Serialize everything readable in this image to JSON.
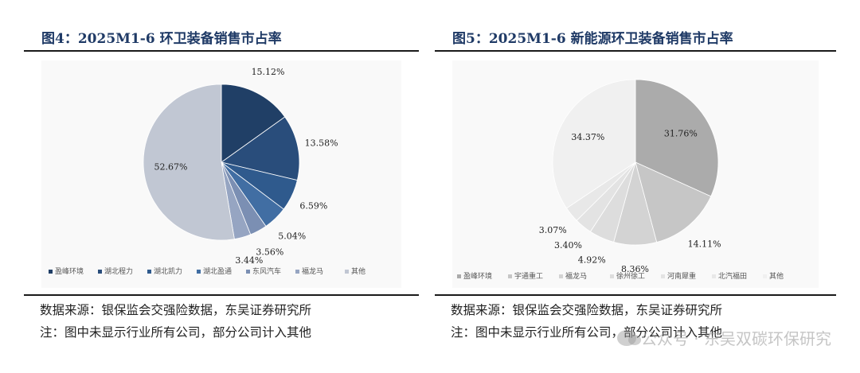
{
  "watermark": "公众号 · 东吴双碳环保研究",
  "chart_data": [
    {
      "type": "pie",
      "title": "图4：2025M1-6 环卫装备销售市占率",
      "labels": [
        "盈峰环境",
        "湖北程力",
        "湖北凯力",
        "湖北盈通",
        "东风汽车",
        "福龙马",
        "其他"
      ],
      "values": [
        15.12,
        13.58,
        6.59,
        5.04,
        3.56,
        3.44,
        52.67
      ],
      "value_labels": [
        "15.12%",
        "13.58%",
        "6.59%",
        "5.04%",
        "3.56%",
        "3.44%",
        "52.67%"
      ],
      "colors": [
        "#203f66",
        "#294d7b",
        "#2f5a8d",
        "#416ea3",
        "#7b8fb3",
        "#96a5c2",
        "#c1c7d3"
      ],
      "legend_position": "bottom",
      "source": "数据来源：银保监会交强险数据，东吴证券研究所",
      "note": "注：图中未显示行业所有公司，部分公司计入其他"
    },
    {
      "type": "pie",
      "title": "图5：2025M1-6 新能源环卫装备销售市占率",
      "labels": [
        "盈峰环境",
        "宇通重工",
        "福龙马",
        "徐州徐工",
        "河南犀重",
        "北汽福田",
        "其他"
      ],
      "values": [
        31.76,
        14.11,
        8.36,
        4.92,
        3.4,
        3.07,
        34.37
      ],
      "value_labels": [
        "31.76%",
        "14.11%",
        "8.36%",
        "4.92%",
        "3.40%",
        "3.07%",
        "34.37%"
      ],
      "colors": [
        "#ababab",
        "#c6c6c6",
        "#d3d3d3",
        "#dddddd",
        "#e3e3e3",
        "#e8e8e8",
        "#f0f0f0"
      ],
      "legend_position": "bottom",
      "source": "数据来源：银保监会交强险数据，东吴证券研究所",
      "note": "注：图中未显示行业所有公司，部分公司计入其他"
    }
  ]
}
